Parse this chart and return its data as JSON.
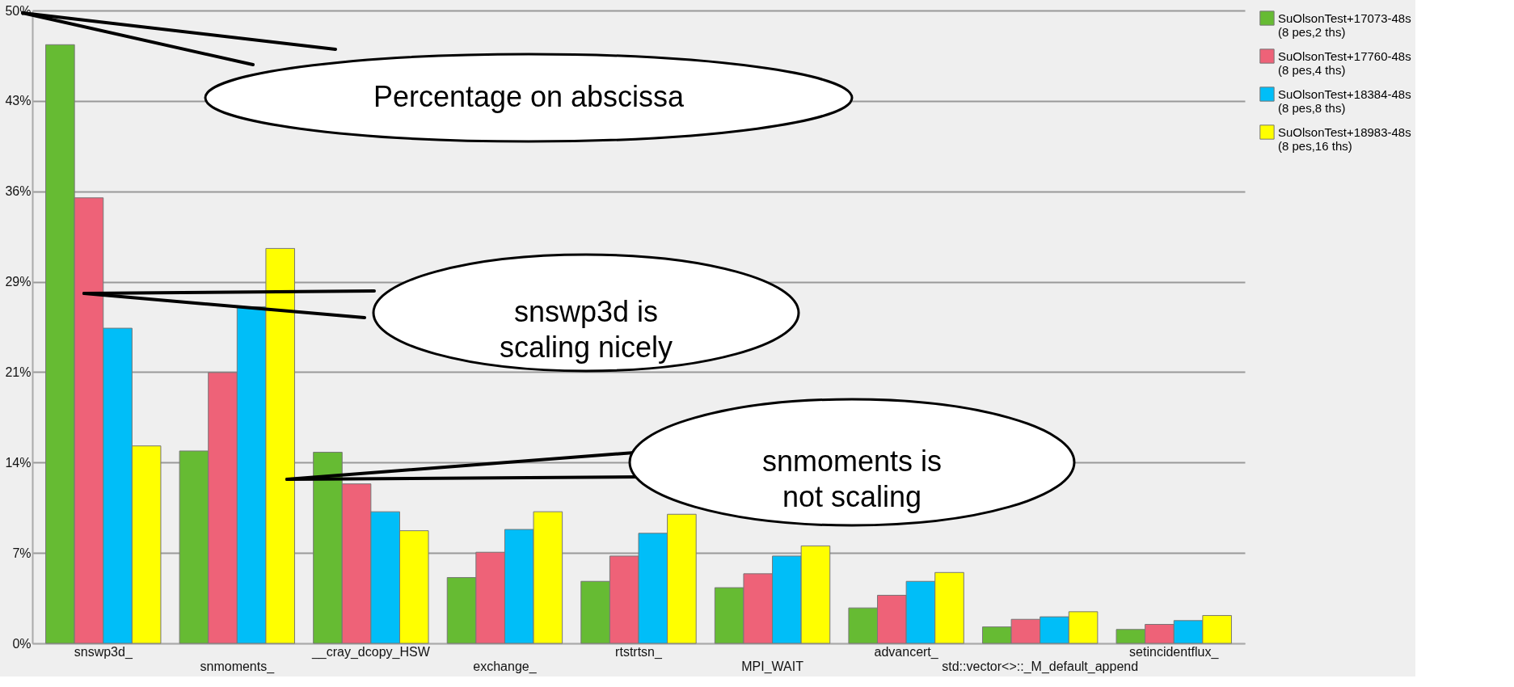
{
  "chart_data": {
    "type": "bar",
    "categories": [
      "snswp3d_",
      "snmoments_",
      "__cray_dcopy_HSW",
      "exchange_",
      "rtstrtsn_",
      "MPI_WAIT",
      "advancert_",
      "std::vector<>::_M_default_append",
      "setincidentflux_"
    ],
    "series": [
      {
        "name": "SuOlsonTest+17073-48s (8 pes,2 ths)",
        "color": "#66bb33",
        "values": [
          47.3,
          15.2,
          15.1,
          5.2,
          4.9,
          4.4,
          2.8,
          1.3,
          1.1
        ]
      },
      {
        "name": "SuOlsonTest+17760-48s (8 pes,4 ths)",
        "color": "#ee6278",
        "values": [
          35.2,
          21.4,
          12.6,
          7.2,
          6.9,
          5.5,
          3.8,
          1.9,
          1.5
        ]
      },
      {
        "name": "SuOlsonTest+18384-48s (8 pes,8 ths)",
        "color": "#00bef8",
        "values": [
          24.9,
          26.6,
          10.4,
          9.0,
          8.7,
          6.9,
          4.9,
          2.1,
          1.8
        ]
      },
      {
        "name": "SuOlsonTest+18983-48s (8 pes,16 ths)",
        "color": "#ffff00",
        "values": [
          15.6,
          31.2,
          8.9,
          10.4,
          10.2,
          7.7,
          5.6,
          2.5,
          2.2
        ]
      }
    ],
    "ylim": [
      0,
      50
    ],
    "yticks": [
      {
        "value": 0,
        "label": "0%"
      },
      {
        "value": 7.14,
        "label": "7%"
      },
      {
        "value": 14.29,
        "label": "14%"
      },
      {
        "value": 21.43,
        "label": "21%"
      },
      {
        "value": 28.57,
        "label": "29%"
      },
      {
        "value": 35.71,
        "label": "36%"
      },
      {
        "value": 42.86,
        "label": "43%"
      },
      {
        "value": 50,
        "label": "50%"
      }
    ],
    "grid": "y",
    "legend": "right",
    "annotations": [
      "Percentage on abscissa",
      "snswp3d is scaling nicely",
      "snmoments is not scaling"
    ]
  }
}
